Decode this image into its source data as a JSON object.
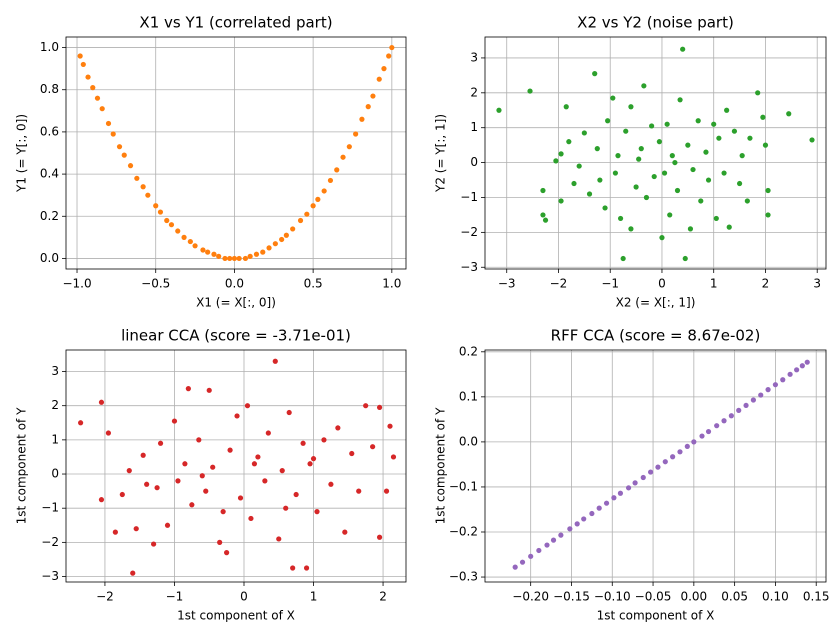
{
  "chart_data": [
    {
      "type": "scatter",
      "title": "X1 vs Y1 (correlated part)",
      "xlabel": "X1 (= X[:, 0])",
      "ylabel": "Y1 (= Y[:, 0])",
      "color": "#ff7f0e",
      "grid": true,
      "xlim": [
        -1.07,
        1.09
      ],
      "ylim": [
        -0.05,
        1.05
      ],
      "xticks": [
        {
          "value": -1.0,
          "label": "−1.0"
        },
        {
          "value": -0.5,
          "label": "−0.5"
        },
        {
          "value": 0,
          "label": "0.0"
        },
        0.5,
        {
          "value": 1,
          "label": "1.0"
        }
      ],
      "yticks": [
        {
          "value": 0,
          "label": "0.0"
        },
        0.2,
        0.4,
        0.6,
        0.8,
        {
          "value": 1,
          "label": "1.0"
        }
      ],
      "x": [
        -0.98,
        -0.96,
        -0.93,
        -0.9,
        -0.87,
        -0.84,
        -0.8,
        -0.77,
        -0.73,
        -0.7,
        -0.66,
        -0.62,
        -0.58,
        -0.55,
        -0.5,
        -0.47,
        -0.43,
        -0.4,
        -0.36,
        -0.32,
        -0.28,
        -0.25,
        -0.2,
        -0.17,
        -0.13,
        -0.1,
        -0.06,
        -0.03,
        0.0,
        0.03,
        0.07,
        0.1,
        0.14,
        0.18,
        0.22,
        0.26,
        0.3,
        0.33,
        0.37,
        0.42,
        0.46,
        0.5,
        0.53,
        0.57,
        0.61,
        0.65,
        0.69,
        0.73,
        0.77,
        0.81,
        0.85,
        0.88,
        0.92,
        0.95,
        0.98,
        1.0
      ],
      "values": [
        0.96,
        0.92,
        0.86,
        0.81,
        0.76,
        0.71,
        0.64,
        0.59,
        0.53,
        0.49,
        0.44,
        0.38,
        0.34,
        0.3,
        0.25,
        0.22,
        0.18,
        0.16,
        0.13,
        0.1,
        0.08,
        0.06,
        0.04,
        0.03,
        0.02,
        0.01,
        0.0,
        0.0,
        0.0,
        0.0,
        0.0,
        0.01,
        0.02,
        0.03,
        0.05,
        0.07,
        0.09,
        0.11,
        0.14,
        0.18,
        0.21,
        0.25,
        0.28,
        0.32,
        0.37,
        0.42,
        0.48,
        0.53,
        0.59,
        0.66,
        0.72,
        0.77,
        0.85,
        0.9,
        0.96,
        1.0
      ]
    },
    {
      "type": "scatter",
      "title": "X2 vs Y2 (noise part)",
      "xlabel": "X2 (= X[:, 1])",
      "ylabel": "Y2 (= Y[:, 1])",
      "color": "#2ca02c",
      "grid": true,
      "xlim": [
        -3.42,
        3.17
      ],
      "ylim": [
        -3.05,
        3.6
      ],
      "xticks": [
        {
          "value": -3,
          "label": "−3"
        },
        {
          "value": -2,
          "label": "−2"
        },
        {
          "value": -1,
          "label": "−1"
        },
        0,
        1,
        2,
        3
      ],
      "yticks": [
        {
          "value": -3,
          "label": "−3"
        },
        {
          "value": -2,
          "label": "−2"
        },
        {
          "value": -1,
          "label": "−1"
        },
        0,
        1,
        2,
        3
      ],
      "x": [
        -3.15,
        -2.55,
        -2.3,
        -2.25,
        -2.3,
        -2.05,
        -1.95,
        -1.85,
        -1.8,
        -1.7,
        -1.6,
        -1.5,
        -1.4,
        -1.3,
        -1.25,
        -1.2,
        -1.1,
        -1.05,
        -0.95,
        -0.9,
        -0.85,
        -0.8,
        -0.7,
        -0.6,
        -0.6,
        -0.5,
        -0.4,
        -0.35,
        -0.3,
        -0.2,
        -0.15,
        -0.05,
        0.0,
        0.05,
        0.1,
        0.15,
        0.2,
        0.3,
        0.35,
        0.4,
        0.45,
        0.5,
        0.6,
        0.7,
        0.75,
        0.85,
        0.9,
        1.0,
        1.05,
        1.1,
        1.2,
        1.25,
        1.3,
        1.4,
        1.5,
        1.55,
        1.65,
        1.7,
        1.85,
        1.95,
        2.05,
        2.05,
        2.0,
        2.45,
        2.9,
        -0.75,
        0.55,
        -1.95,
        0.25,
        -0.45
      ],
      "values": [
        1.5,
        2.05,
        -1.5,
        -1.65,
        -0.8,
        0.05,
        -1.1,
        1.6,
        0.6,
        -0.6,
        -0.1,
        0.85,
        -0.9,
        2.55,
        0.4,
        -0.5,
        -1.3,
        1.2,
        1.85,
        -0.3,
        0.2,
        -1.6,
        0.9,
        1.6,
        -1.9,
        -0.7,
        0.4,
        2.2,
        -1.0,
        1.05,
        -0.4,
        0.6,
        -2.15,
        -0.3,
        1.1,
        -1.5,
        0.2,
        -0.8,
        1.8,
        3.25,
        -2.75,
        0.5,
        -0.2,
        1.2,
        -1.1,
        0.3,
        -0.5,
        1.1,
        -1.6,
        0.7,
        -0.3,
        1.5,
        -1.85,
        0.9,
        -0.6,
        0.2,
        -1.1,
        0.7,
        2.0,
        1.3,
        -0.8,
        -1.5,
        0.5,
        1.4,
        0.65,
        -2.75,
        -1.9,
        0.25,
        0.0,
        0.1
      ]
    },
    {
      "type": "scatter",
      "title": "linear CCA (score = -3.71e-01)",
      "xlabel": "1st component of X",
      "ylabel": "1st component of Y",
      "color": "#d62728",
      "grid": true,
      "xlim": [
        -2.56,
        2.33
      ],
      "ylim": [
        -3.16,
        3.63
      ],
      "xticks": [
        {
          "value": -2,
          "label": "−2"
        },
        {
          "value": -1,
          "label": "−1"
        },
        0,
        1,
        2
      ],
      "yticks": [
        {
          "value": -3,
          "label": "−3"
        },
        {
          "value": -2,
          "label": "−2"
        },
        {
          "value": -1,
          "label": "−1"
        },
        0,
        1,
        2,
        3
      ],
      "x": [
        -2.35,
        -2.05,
        -2.05,
        -1.95,
        -1.85,
        -1.75,
        -1.65,
        -1.6,
        -1.55,
        -1.45,
        -1.3,
        -1.25,
        -1.2,
        -1.1,
        -1.0,
        -0.95,
        -0.85,
        -0.8,
        -0.75,
        -0.65,
        -0.55,
        -0.5,
        -0.45,
        -0.35,
        -0.3,
        -0.2,
        -0.1,
        -0.05,
        0.05,
        0.1,
        0.2,
        0.3,
        0.35,
        0.45,
        0.5,
        0.55,
        0.65,
        0.7,
        0.75,
        0.85,
        0.9,
        0.95,
        1.05,
        1.15,
        1.25,
        1.35,
        1.45,
        1.55,
        1.65,
        1.75,
        1.85,
        1.95,
        1.95,
        2.05,
        2.1,
        2.15,
        -0.25,
        0.15,
        -0.6,
        1.0,
        -1.4,
        0.6
      ],
      "values": [
        1.5,
        2.1,
        -0.75,
        1.2,
        -1.7,
        -0.6,
        0.1,
        -2.9,
        -1.6,
        0.55,
        -2.05,
        -0.4,
        0.9,
        -1.5,
        1.55,
        -0.2,
        0.3,
        2.5,
        -0.9,
        1.0,
        -0.5,
        2.45,
        0.2,
        -2.0,
        -1.1,
        0.7,
        1.7,
        -0.7,
        2.0,
        -1.3,
        0.5,
        -0.2,
        1.2,
        3.3,
        -1.9,
        0.1,
        1.8,
        -2.75,
        -0.6,
        0.9,
        -2.75,
        0.3,
        -1.1,
        1.0,
        -0.3,
        1.35,
        -1.7,
        0.6,
        -0.5,
        2.0,
        0.8,
        -1.85,
        1.95,
        -0.5,
        1.4,
        0.5,
        -2.3,
        0.3,
        -0.05,
        0.45,
        -0.3,
        -1.0
      ]
    },
    {
      "type": "scatter",
      "title": "RFF CCA (score = 8.67e-02)",
      "xlabel": "1st component of X",
      "ylabel": "1st component of Y",
      "color": "#9467bd",
      "grid": true,
      "xlim": [
        -0.256,
        0.162
      ],
      "ylim": [
        -0.311,
        0.204
      ],
      "xticks": [
        {
          "value": -0.2,
          "label": "−0.20"
        },
        {
          "value": -0.15,
          "label": "−0.15"
        },
        {
          "value": -0.1,
          "label": "−0.10"
        },
        {
          "value": -0.05,
          "label": "−0.05"
        },
        {
          "value": 0,
          "label": "0.00"
        },
        {
          "value": 0.05,
          "label": "0.05"
        },
        {
          "value": 0.1,
          "label": "0.10"
        },
        {
          "value": 0.15,
          "label": "0.15"
        }
      ],
      "yticks": [
        {
          "value": -0.3,
          "label": "−0.3"
        },
        {
          "value": -0.2,
          "label": "−0.2"
        },
        {
          "value": -0.1,
          "label": "−0.1"
        },
        {
          "value": 0,
          "label": "0.0"
        },
        0.1,
        0.2
      ],
      "x": [
        -0.219,
        -0.21,
        -0.2,
        -0.19,
        -0.18,
        -0.172,
        -0.163,
        -0.152,
        -0.143,
        -0.135,
        -0.125,
        -0.116,
        -0.107,
        -0.098,
        -0.09,
        -0.08,
        -0.072,
        -0.062,
        -0.053,
        -0.044,
        -0.035,
        -0.026,
        -0.017,
        -0.008,
        0.0,
        0.01,
        0.018,
        0.028,
        0.037,
        0.046,
        0.055,
        0.064,
        0.073,
        0.082,
        0.091,
        0.1,
        0.109,
        0.118,
        0.126,
        0.133,
        0.139
      ],
      "values": [
        -0.278,
        -0.267,
        -0.254,
        -0.241,
        -0.229,
        -0.218,
        -0.207,
        -0.193,
        -0.182,
        -0.171,
        -0.159,
        -0.147,
        -0.136,
        -0.124,
        -0.114,
        -0.102,
        -0.091,
        -0.079,
        -0.067,
        -0.056,
        -0.044,
        -0.033,
        -0.022,
        -0.01,
        0.0,
        0.013,
        0.023,
        0.036,
        0.047,
        0.058,
        0.07,
        0.081,
        0.093,
        0.104,
        0.116,
        0.127,
        0.138,
        0.15,
        0.16,
        0.169,
        0.177
      ]
    }
  ]
}
